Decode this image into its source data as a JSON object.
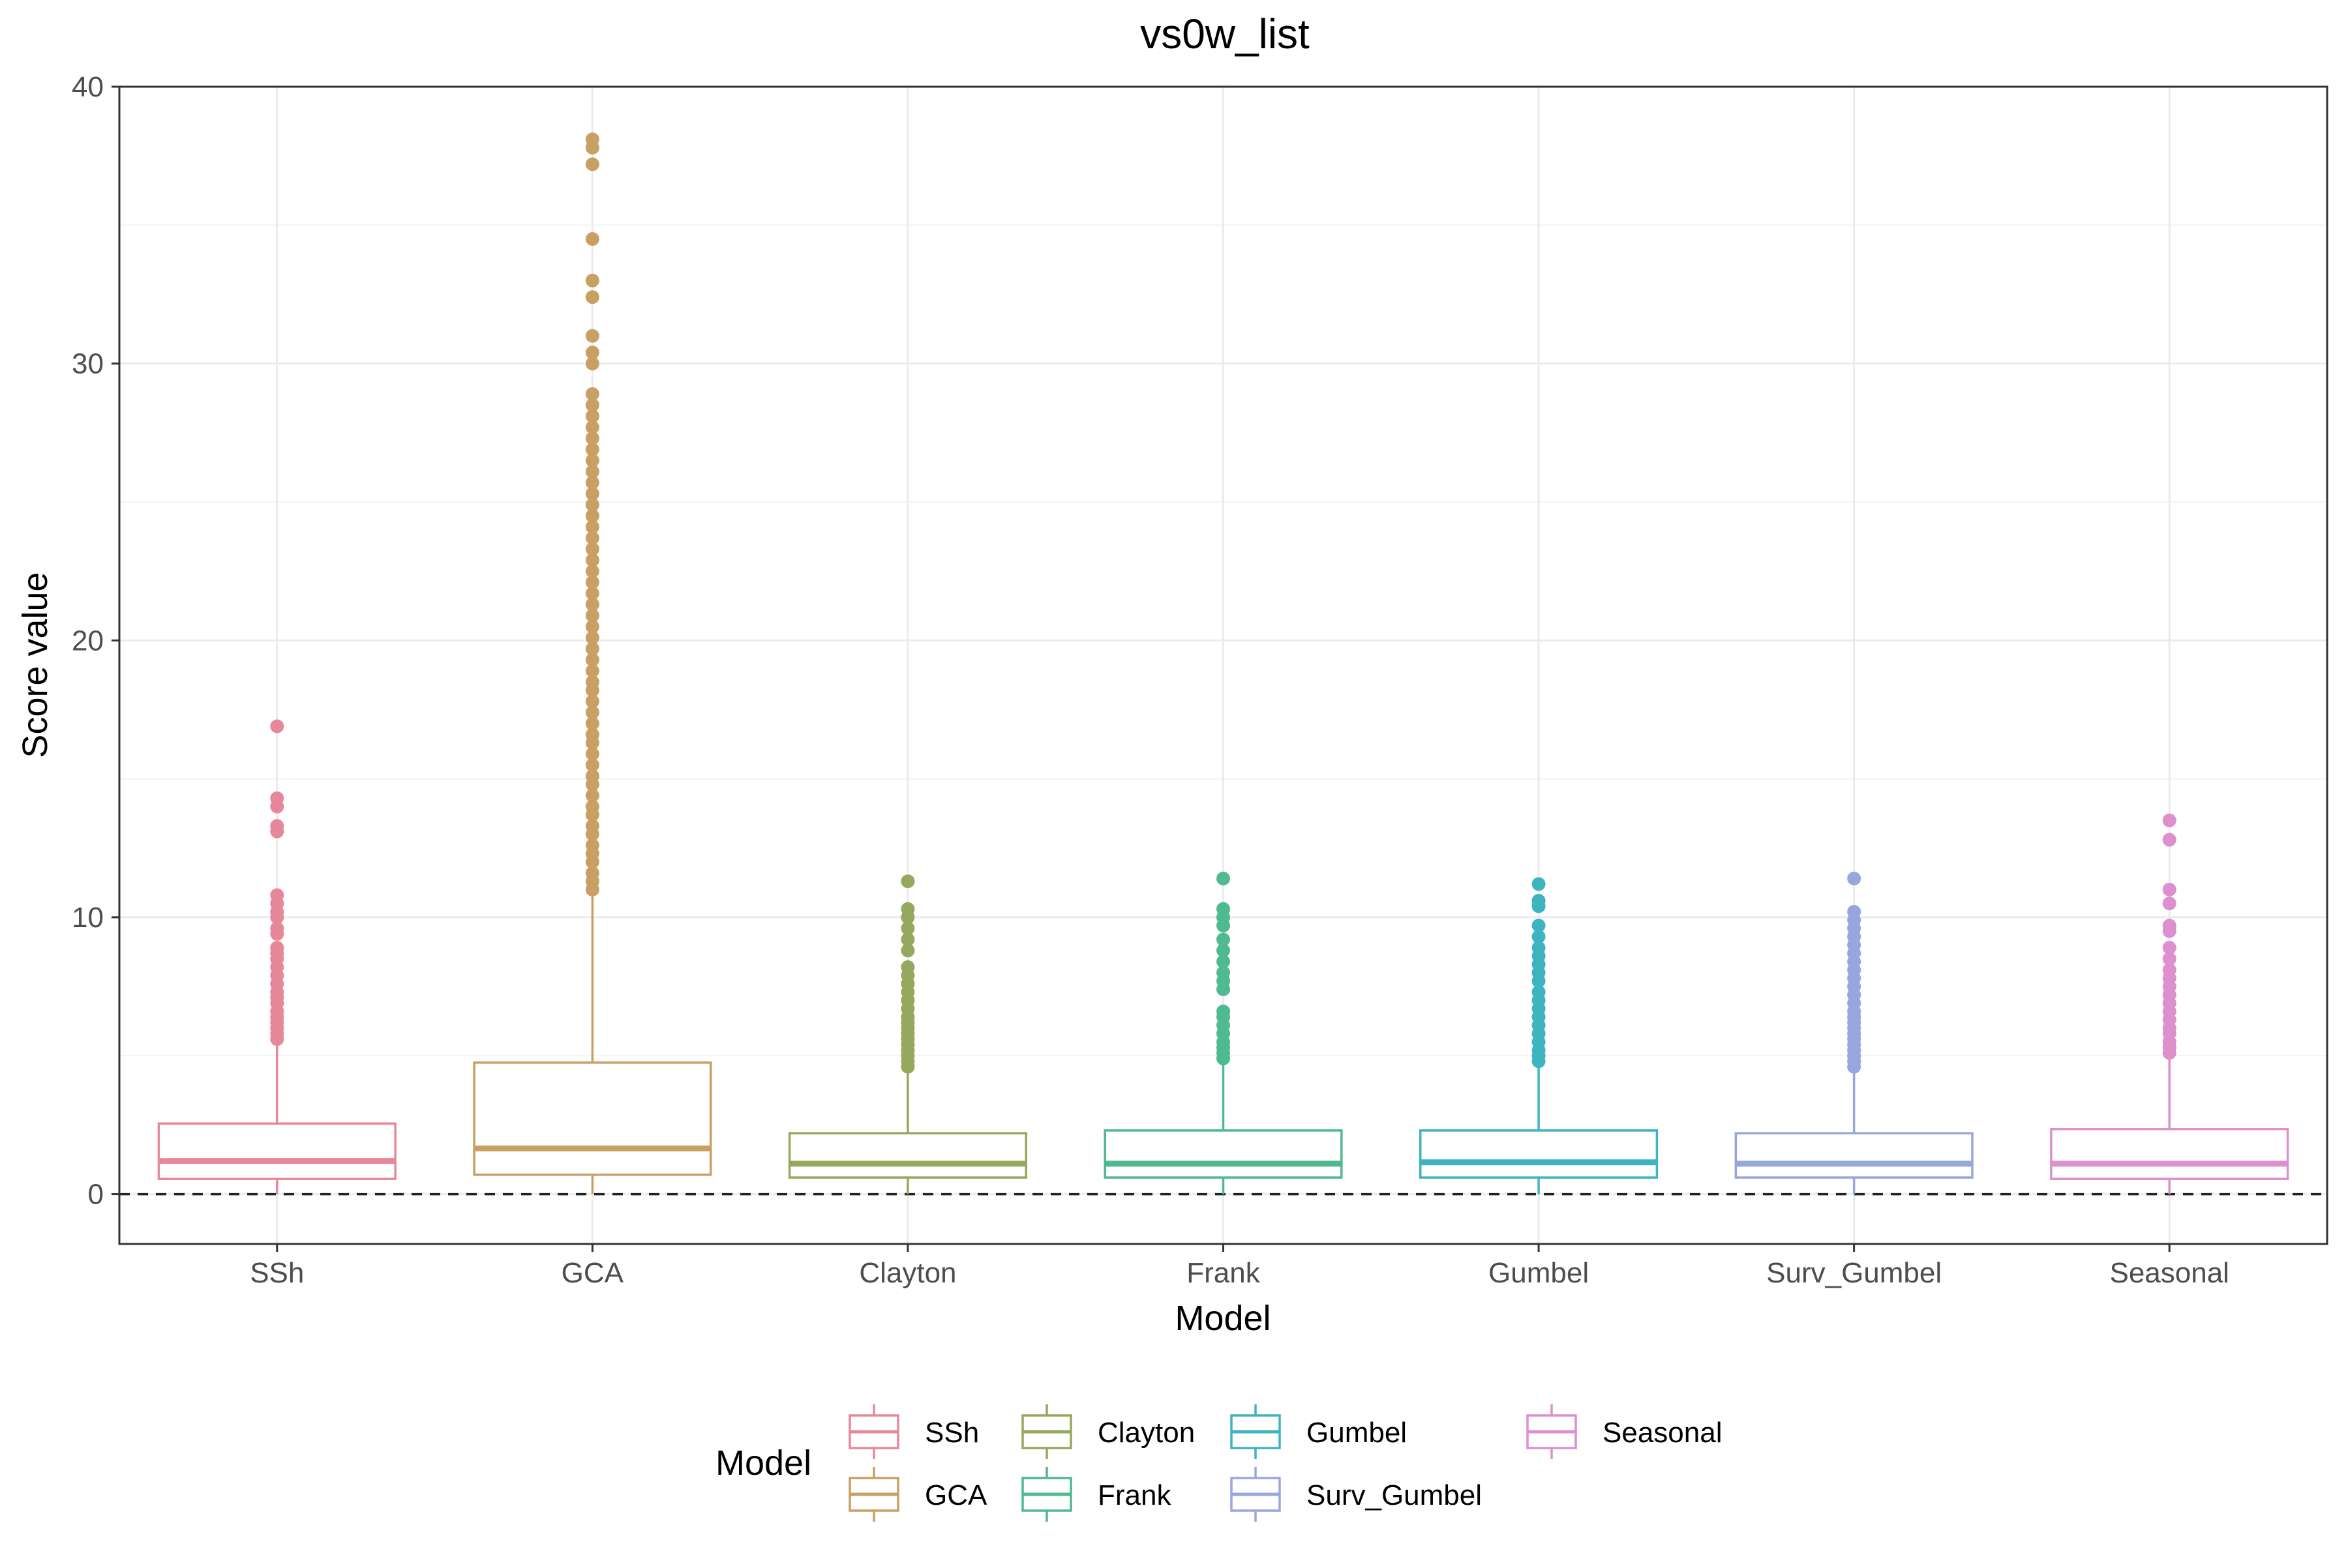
{
  "chart_data": {
    "type": "box",
    "title": "vs0w_list",
    "xlabel": "Model",
    "ylabel": "Score value",
    "ylim": [
      -1.8,
      40
    ],
    "yticks": [
      0,
      10,
      20,
      30,
      40
    ],
    "grid": true,
    "reference_line": {
      "y": 0,
      "style": "dashed"
    },
    "legend": {
      "title": "Model",
      "position": "bottom"
    },
    "categories": [
      "SSh",
      "GCA",
      "Clayton",
      "Frank",
      "Gumbel",
      "Surv_Gumbel",
      "Seasonal"
    ],
    "series": [
      {
        "name": "SSh",
        "color": "#E7889A",
        "whisker_low": 0,
        "q1": 0.55,
        "median": 1.2,
        "q3": 2.55,
        "whisker_high": 5.55,
        "outliers": [
          5.6,
          5.8,
          6.0,
          6.2,
          6.4,
          6.6,
          6.9,
          7.1,
          7.3,
          7.6,
          7.9,
          8.2,
          8.5,
          8.7,
          8.9,
          9.4,
          9.6,
          10.0,
          10.2,
          10.5,
          10.8,
          13.1,
          13.3,
          14.0,
          14.3,
          16.9
        ]
      },
      {
        "name": "GCA",
        "color": "#C8A064",
        "whisker_low": 0,
        "q1": 0.7,
        "median": 1.65,
        "q3": 4.75,
        "whisker_high": 10.9,
        "outliers": [
          11.0,
          11.3,
          11.6,
          12.0,
          12.3,
          12.6,
          13.0,
          13.3,
          13.7,
          14.0,
          14.4,
          14.8,
          15.1,
          15.5,
          15.9,
          16.3,
          16.6,
          17.0,
          17.4,
          17.8,
          18.2,
          18.5,
          18.9,
          19.3,
          19.7,
          20.1,
          20.5,
          20.9,
          21.3,
          21.7,
          22.1,
          22.5,
          22.9,
          23.3,
          23.7,
          24.1,
          24.5,
          24.9,
          25.3,
          25.7,
          26.1,
          26.5,
          26.9,
          27.3,
          27.7,
          28.1,
          28.5,
          28.9,
          30.0,
          30.4,
          31.0,
          32.4,
          33.0,
          34.5,
          37.2,
          37.8,
          38.1
        ]
      },
      {
        "name": "Clayton",
        "color": "#95A85E",
        "whisker_low": 0,
        "q1": 0.6,
        "median": 1.1,
        "q3": 2.2,
        "whisker_high": 4.5,
        "outliers": [
          4.6,
          4.8,
          5.0,
          5.2,
          5.4,
          5.6,
          5.8,
          6.0,
          6.2,
          6.4,
          6.7,
          7.0,
          7.3,
          7.6,
          7.9,
          8.2,
          8.8,
          9.2,
          9.6,
          10.0,
          10.3,
          11.3
        ]
      },
      {
        "name": "Frank",
        "color": "#4FB98F",
        "whisker_low": 0,
        "q1": 0.6,
        "median": 1.1,
        "q3": 2.3,
        "whisker_high": 4.8,
        "outliers": [
          4.9,
          5.1,
          5.3,
          5.5,
          5.8,
          6.1,
          6.4,
          6.6,
          7.4,
          7.7,
          8.0,
          8.4,
          8.8,
          9.2,
          9.7,
          10.0,
          10.3,
          11.4
        ]
      },
      {
        "name": "Gumbel",
        "color": "#3DB4C0",
        "whisker_low": 0,
        "q1": 0.6,
        "median": 1.15,
        "q3": 2.3,
        "whisker_high": 4.75,
        "outliers": [
          4.8,
          5.0,
          5.2,
          5.5,
          5.8,
          6.1,
          6.4,
          6.7,
          7.0,
          7.3,
          7.7,
          8.0,
          8.3,
          8.6,
          8.9,
          9.3,
          9.7,
          10.4,
          10.6,
          11.2
        ]
      },
      {
        "name": "Surv_Gumbel",
        "color": "#98A6DE",
        "whisker_low": 0,
        "q1": 0.6,
        "median": 1.1,
        "q3": 2.2,
        "whisker_high": 4.55,
        "outliers": [
          4.6,
          4.8,
          5.0,
          5.2,
          5.4,
          5.6,
          5.8,
          6.0,
          6.2,
          6.4,
          6.6,
          6.9,
          7.2,
          7.5,
          7.8,
          8.1,
          8.4,
          8.7,
          9.0,
          9.3,
          9.6,
          9.9,
          10.2,
          11.4
        ]
      },
      {
        "name": "Seasonal",
        "color": "#DD8FCE",
        "whisker_low": 0,
        "q1": 0.55,
        "median": 1.1,
        "q3": 2.35,
        "whisker_high": 5.0,
        "outliers": [
          5.1,
          5.3,
          5.5,
          5.8,
          6.0,
          6.3,
          6.6,
          6.9,
          7.2,
          7.5,
          7.8,
          8.1,
          8.5,
          8.9,
          9.5,
          9.7,
          10.5,
          11.0,
          12.8,
          13.5
        ]
      }
    ]
  }
}
